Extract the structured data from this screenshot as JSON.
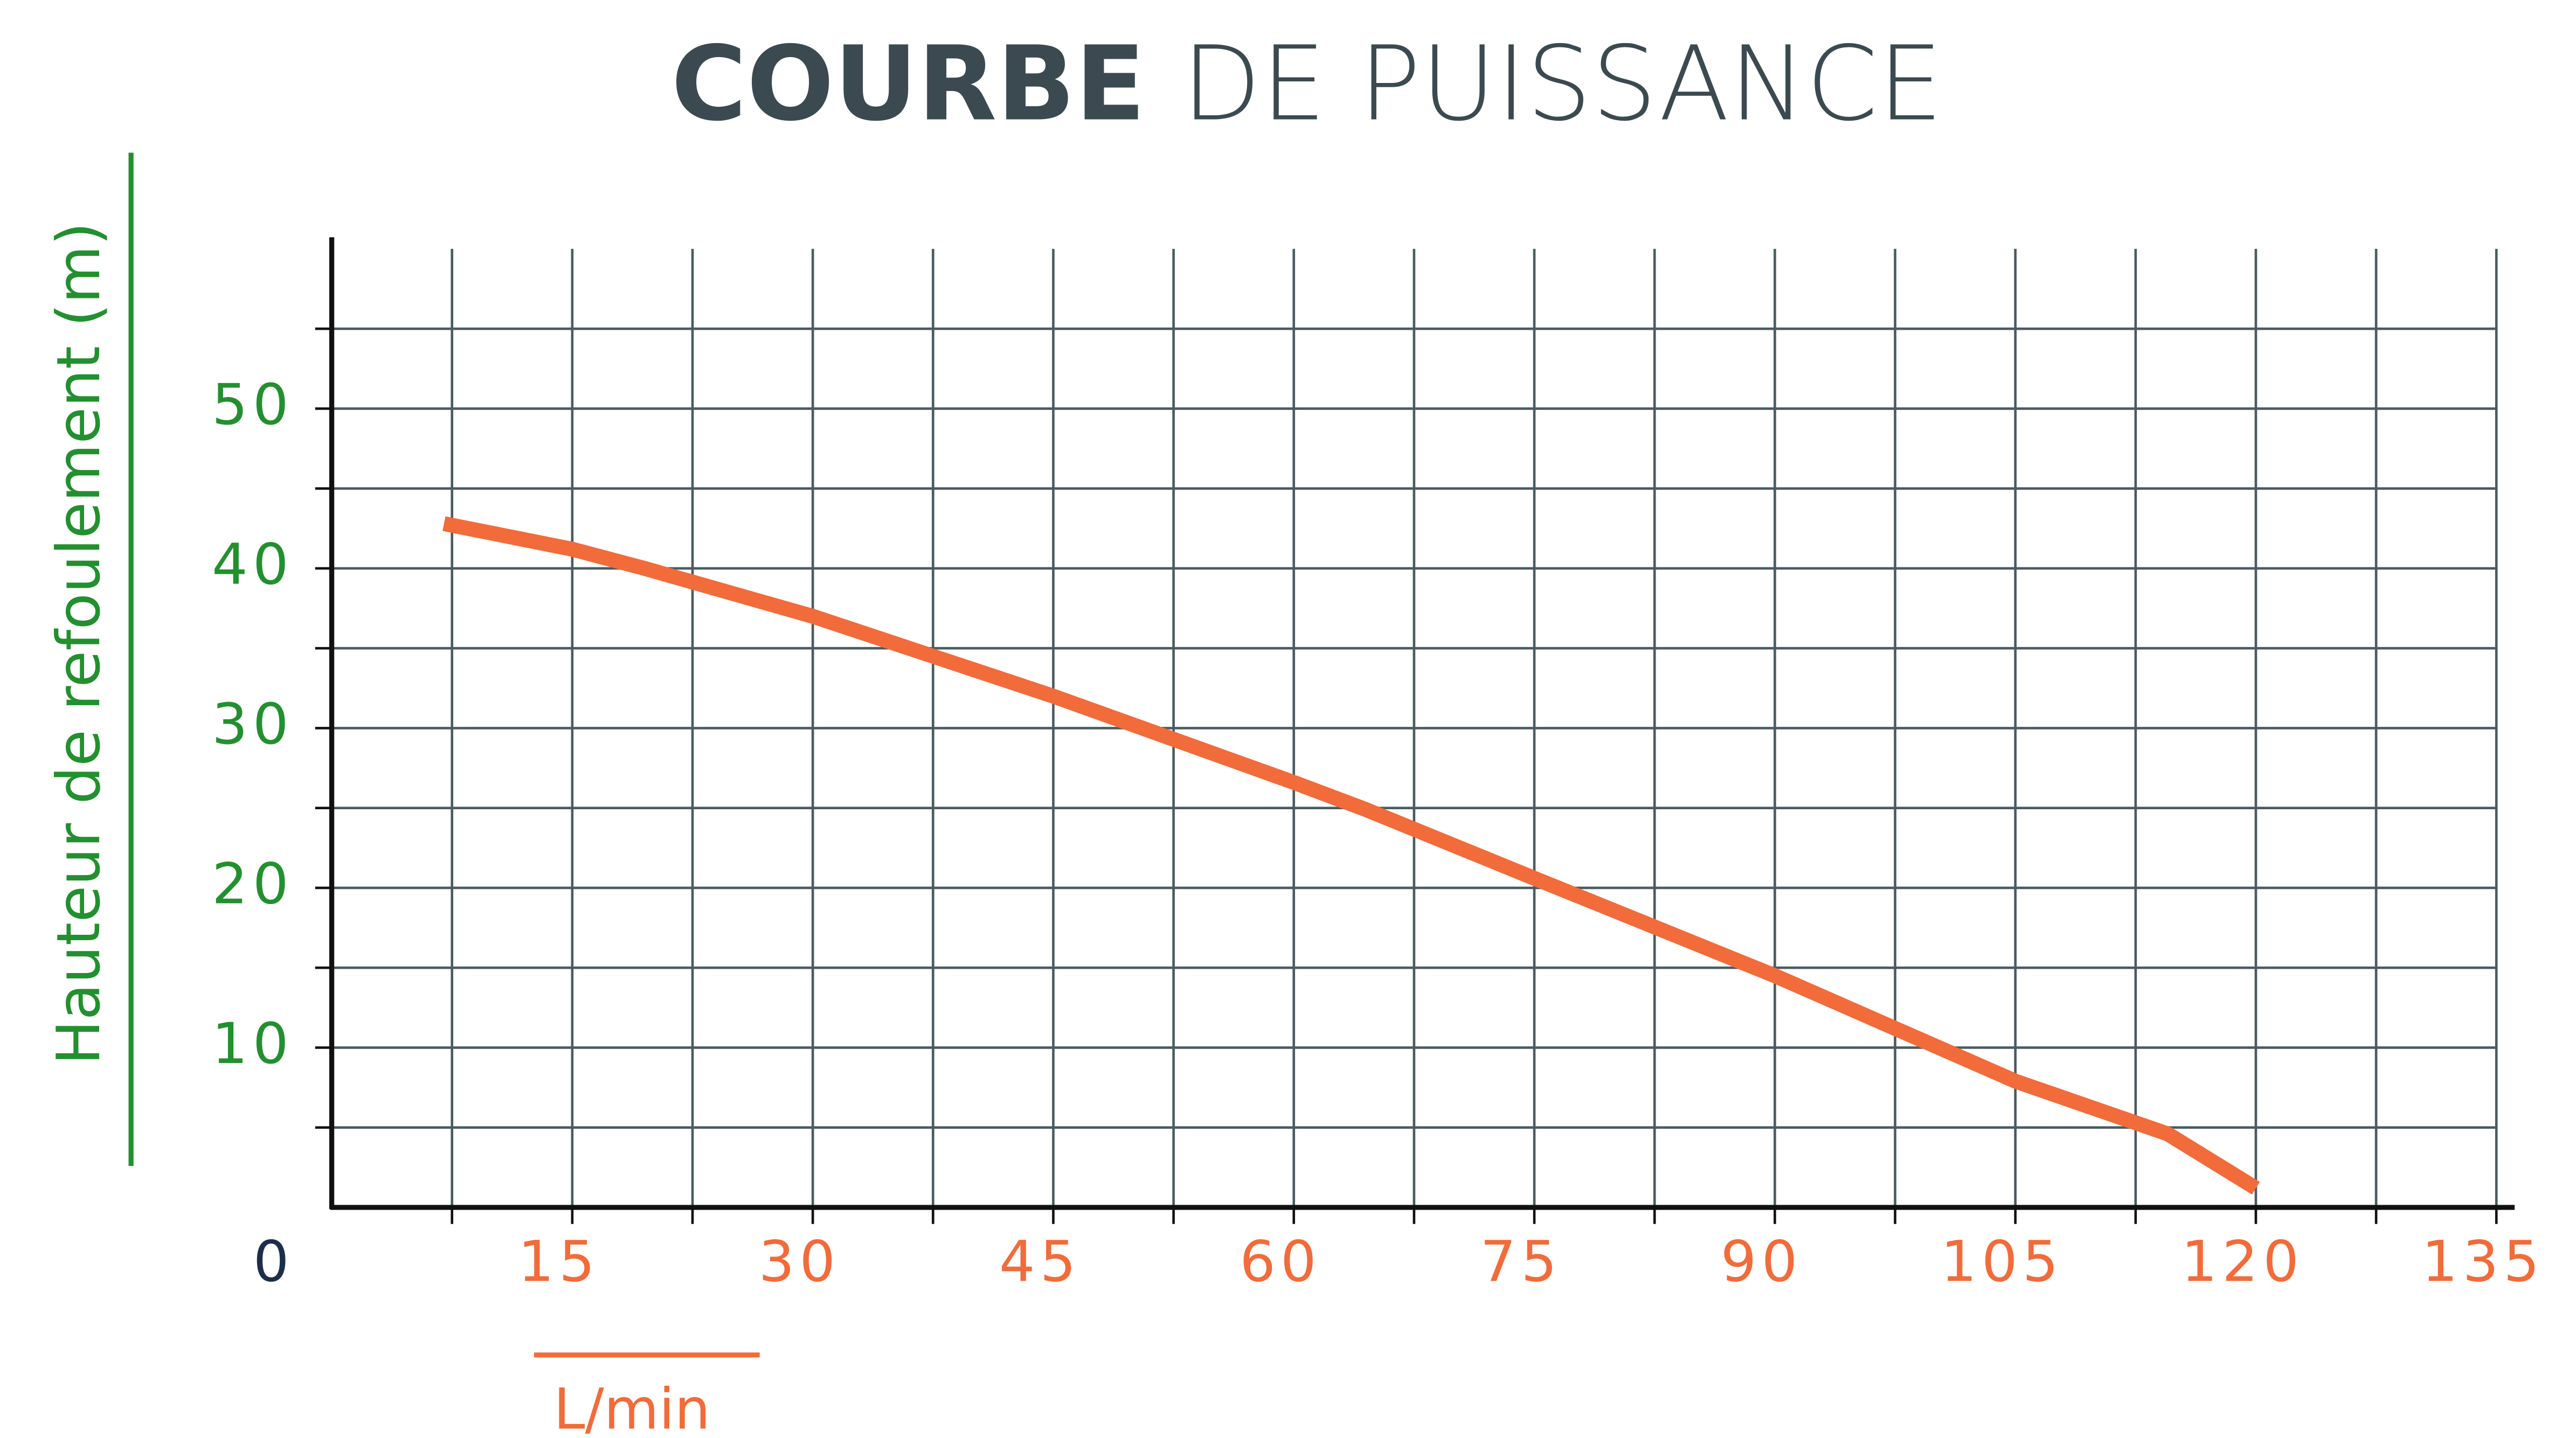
{
  "chart_data": {
    "type": "line",
    "title_bold": "COURBE",
    "title_regular": "DE PUISSANCE",
    "y_label": "Hauteur de refoulement (m)",
    "x_label": "L/min",
    "x": [
      7,
      15,
      19.5,
      30,
      45,
      60,
      64.5,
      75,
      90,
      105,
      114.5,
      120
    ],
    "values": [
      42.8,
      41.2,
      40,
      37,
      32,
      26.6,
      24.9,
      20.6,
      14.5,
      7.9,
      4.6,
      1.2
    ],
    "color": "#f26b3a",
    "xlim": [
      0,
      135
    ],
    "xticks": [
      0,
      15,
      30,
      45,
      60,
      75,
      90,
      105,
      120,
      135
    ],
    "ylim": [
      0,
      60
    ],
    "yticks": [
      10,
      20,
      30,
      40,
      50
    ],
    "grid": true
  }
}
